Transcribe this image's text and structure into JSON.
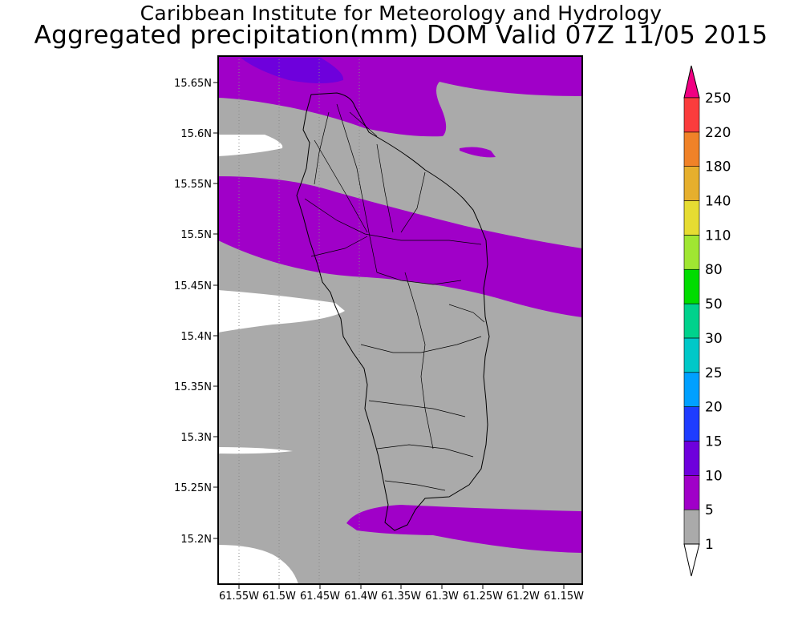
{
  "title_line1": "Caribbean Institute for Meteorology and Hydrology",
  "title_line2": "Aggregated precipitation(mm) DOM Valid 07Z 11/05 2015",
  "map": {
    "region": "Dominica",
    "lat_range": [
      15.155,
      15.68
    ],
    "lon_range": [
      -61.565,
      -61.135
    ],
    "lat_ticks": [
      "15.65N",
      "15.6N",
      "15.55N",
      "15.5N",
      "15.45N",
      "15.4N",
      "15.35N",
      "15.3N",
      "15.25N",
      "15.2N"
    ],
    "lon_ticks": [
      "61.55W",
      "61.5W",
      "61.45W",
      "61.4W",
      "61.35W",
      "61.3W",
      "61.25W",
      "61.2W",
      "61.15W"
    ],
    "gridlines": true
  },
  "colorbar": {
    "labels": [
      "1",
      "5",
      "10",
      "15",
      "20",
      "25",
      "30",
      "50",
      "80",
      "110",
      "140",
      "180",
      "220",
      "250"
    ],
    "colors": [
      "#aaaaaa",
      "#a000c8",
      "#6e00dc",
      "#1e3cff",
      "#00a0ff",
      "#00c8c8",
      "#00d28c",
      "#00dc00",
      "#a0e632",
      "#e6dc32",
      "#e6af2d",
      "#f08228",
      "#fa3c3c",
      "#f00082"
    ],
    "below_color": "#ffffff"
  }
}
